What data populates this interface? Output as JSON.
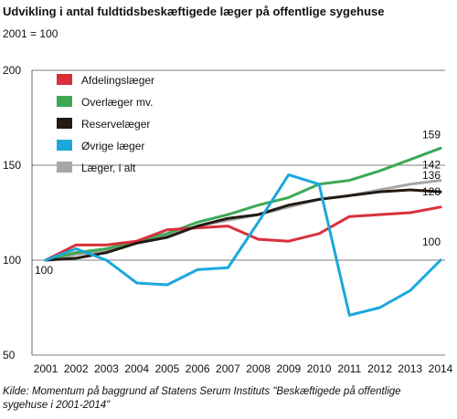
{
  "chart_data": {
    "type": "line",
    "title": "Udvikling i antal fuldtidsbeskæftigede læger på offentlige sygehuse",
    "subtitle": "2001 = 100",
    "source": "Kilde: Momentum på baggrund af Statens Serum Instituts \"Beskæftigede på offentlige sygehuse i 2001-2014\"",
    "x": [
      "2001",
      "2002",
      "2003",
      "2004",
      "2005",
      "2006",
      "2007",
      "2008",
      "2009",
      "2010",
      "2011",
      "2012",
      "2013",
      "2014"
    ],
    "ylim": [
      50,
      200
    ],
    "yticks": [
      50,
      100,
      150,
      200
    ],
    "ytick_labels": [
      "50",
      "100",
      "150",
      "200"
    ],
    "legend_position": "top-left",
    "start_label": "100",
    "series": [
      {
        "name": "Afdelingslæger",
        "color": "#d9303a",
        "end_label": "128",
        "values": [
          100,
          108,
          108,
          110,
          116,
          117,
          118,
          111,
          110,
          114,
          123,
          124,
          125,
          128
        ]
      },
      {
        "name": "Overlæger mv.",
        "color": "#3da954",
        "end_label": "159",
        "values": [
          100,
          104,
          106,
          110,
          114,
          120,
          124,
          129,
          133,
          140,
          142,
          147,
          153,
          159
        ]
      },
      {
        "name": "Reservelæger",
        "color": "#231a14",
        "end_label": "136",
        "values": [
          100,
          101,
          104,
          109,
          112,
          118,
          122,
          124,
          129,
          132,
          134,
          136,
          137,
          136
        ]
      },
      {
        "name": "Øvrige læger",
        "color": "#1ba8dc",
        "end_label": "100",
        "values": [
          100,
          106,
          100,
          88,
          87,
          95,
          96,
          120,
          145,
          140,
          71,
          75,
          84,
          100
        ]
      },
      {
        "name": "Læger, i alt",
        "color": "#a6a6a6",
        "end_label": "142",
        "values": [
          100,
          103,
          105,
          109,
          113,
          118,
          121,
          124,
          128,
          132,
          134,
          137,
          140,
          142
        ]
      }
    ]
  }
}
